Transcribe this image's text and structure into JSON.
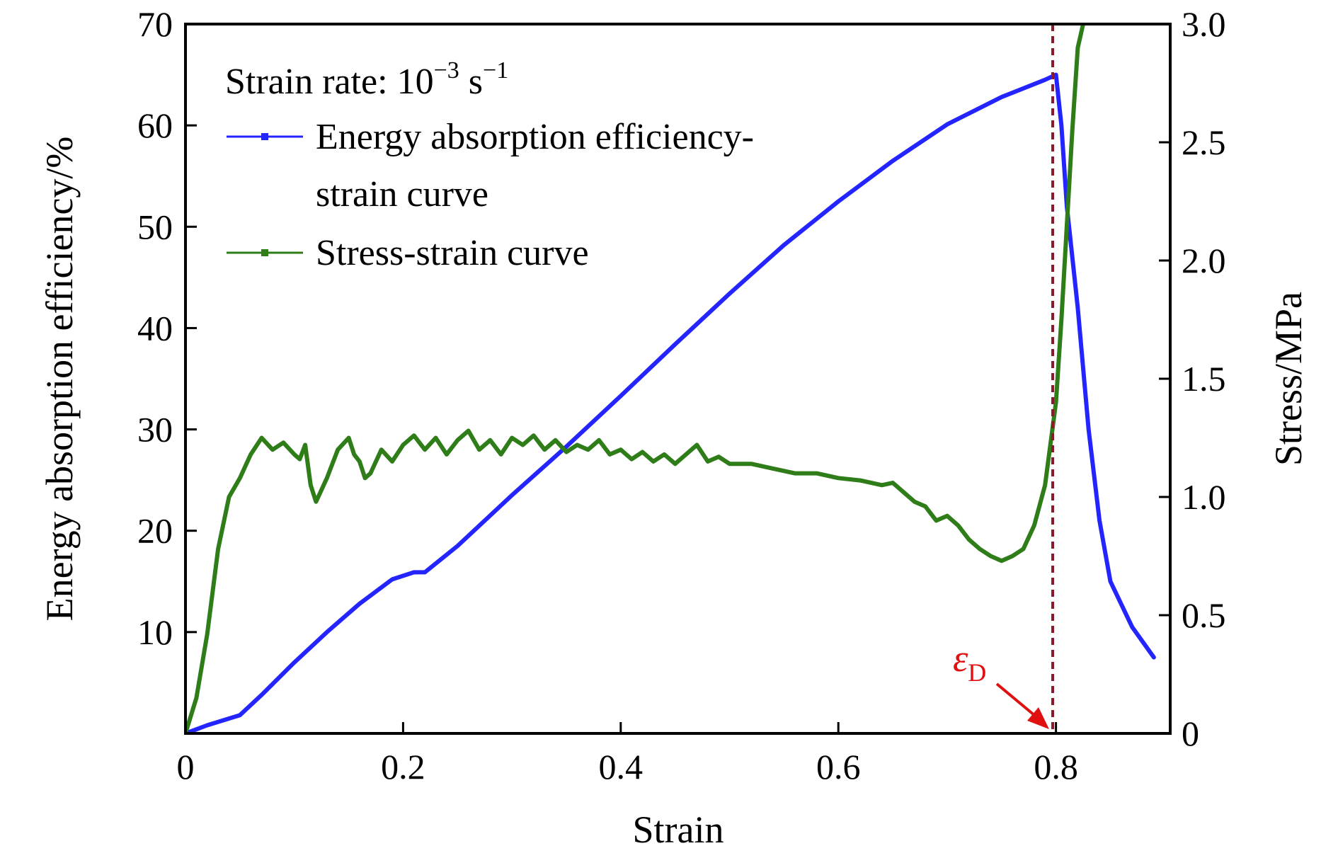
{
  "chart_data": {
    "type": "line",
    "xlabel": "Strain",
    "ylabel_left": "Energy absorption efficiency/%",
    "ylabel_right": "Stress/MPa",
    "xlim": [
      0,
      0.905
    ],
    "ylim_left": [
      0,
      70
    ],
    "ylim_right": [
      0,
      3.0
    ],
    "x_ticks": [
      0,
      0.2,
      0.4,
      0.6,
      0.8
    ],
    "x_tick_labels": [
      "0",
      "0.2",
      "0.4",
      "0.6",
      "0.8"
    ],
    "y_left_ticks": [
      10,
      20,
      30,
      40,
      50,
      60,
      70
    ],
    "y_left_tick_labels": [
      "10",
      "20",
      "30",
      "40",
      "50",
      "60",
      "70"
    ],
    "y_right_ticks": [
      0,
      0.5,
      1.0,
      1.5,
      2.0,
      2.5,
      3.0
    ],
    "y_right_tick_labels": [
      "0",
      "0.5",
      "1.0",
      "1.5",
      "2.0",
      "2.5",
      "3.0"
    ],
    "grid": false,
    "legend": {
      "placement": "top-left",
      "header_main": "Strain rate: 10",
      "header_exp1": "−3",
      "header_unit": " s",
      "header_exp2": "−1",
      "entries": [
        {
          "line1": "Energy absorption efficiency-",
          "line2": "strain curve",
          "color": "#2424ff"
        },
        {
          "line1": "Stress-strain curve",
          "line2": "",
          "color": "#2e7d18"
        }
      ]
    },
    "annotation": {
      "symbol": "ε",
      "subscript": "D",
      "x": 0.797,
      "color": "#e01010",
      "line_color": "#8b1a2a"
    },
    "series": [
      {
        "axis": "left",
        "color": "#2424ff",
        "x": [
          0.0,
          0.02,
          0.05,
          0.07,
          0.1,
          0.13,
          0.16,
          0.19,
          0.21,
          0.22,
          0.25,
          0.3,
          0.35,
          0.4,
          0.45,
          0.5,
          0.55,
          0.6,
          0.65,
          0.7,
          0.75,
          0.79,
          0.8,
          0.805,
          0.81,
          0.82,
          0.83,
          0.84,
          0.85,
          0.87,
          0.89
        ],
        "y": [
          0.0,
          0.8,
          1.8,
          3.8,
          7.0,
          10.0,
          12.8,
          15.2,
          15.9,
          15.9,
          18.5,
          23.5,
          28.3,
          33.3,
          38.4,
          43.4,
          48.2,
          52.5,
          56.5,
          60.1,
          62.8,
          64.5,
          65.0,
          60.0,
          52.0,
          42.0,
          30.0,
          21.0,
          15.0,
          10.5,
          7.5
        ]
      },
      {
        "axis": "right",
        "color": "#2e7d18",
        "x": [
          0.0,
          0.01,
          0.02,
          0.03,
          0.04,
          0.05,
          0.055,
          0.06,
          0.07,
          0.08,
          0.09,
          0.1,
          0.105,
          0.11,
          0.115,
          0.12,
          0.125,
          0.13,
          0.14,
          0.15,
          0.155,
          0.16,
          0.165,
          0.17,
          0.18,
          0.19,
          0.2,
          0.21,
          0.22,
          0.23,
          0.24,
          0.25,
          0.26,
          0.27,
          0.28,
          0.29,
          0.3,
          0.31,
          0.32,
          0.33,
          0.34,
          0.35,
          0.36,
          0.37,
          0.38,
          0.39,
          0.4,
          0.41,
          0.42,
          0.43,
          0.44,
          0.45,
          0.46,
          0.47,
          0.48,
          0.49,
          0.5,
          0.52,
          0.54,
          0.56,
          0.58,
          0.6,
          0.62,
          0.64,
          0.65,
          0.66,
          0.67,
          0.68,
          0.69,
          0.7,
          0.71,
          0.72,
          0.73,
          0.74,
          0.75,
          0.76,
          0.77,
          0.78,
          0.79,
          0.8,
          0.805,
          0.81,
          0.815,
          0.82,
          0.825
        ],
        "y": [
          0.0,
          0.15,
          0.42,
          0.78,
          1.0,
          1.08,
          1.13,
          1.18,
          1.25,
          1.2,
          1.23,
          1.18,
          1.16,
          1.22,
          1.05,
          0.98,
          1.03,
          1.08,
          1.2,
          1.25,
          1.18,
          1.15,
          1.08,
          1.1,
          1.2,
          1.15,
          1.22,
          1.26,
          1.2,
          1.25,
          1.18,
          1.24,
          1.28,
          1.2,
          1.24,
          1.18,
          1.25,
          1.22,
          1.26,
          1.2,
          1.24,
          1.19,
          1.22,
          1.2,
          1.24,
          1.18,
          1.2,
          1.16,
          1.19,
          1.15,
          1.18,
          1.14,
          1.18,
          1.22,
          1.15,
          1.17,
          1.14,
          1.14,
          1.12,
          1.1,
          1.1,
          1.08,
          1.07,
          1.05,
          1.06,
          1.02,
          0.98,
          0.96,
          0.9,
          0.92,
          0.88,
          0.82,
          0.78,
          0.75,
          0.73,
          0.75,
          0.78,
          0.88,
          1.05,
          1.4,
          1.75,
          2.15,
          2.55,
          2.9,
          3.0
        ]
      }
    ]
  }
}
